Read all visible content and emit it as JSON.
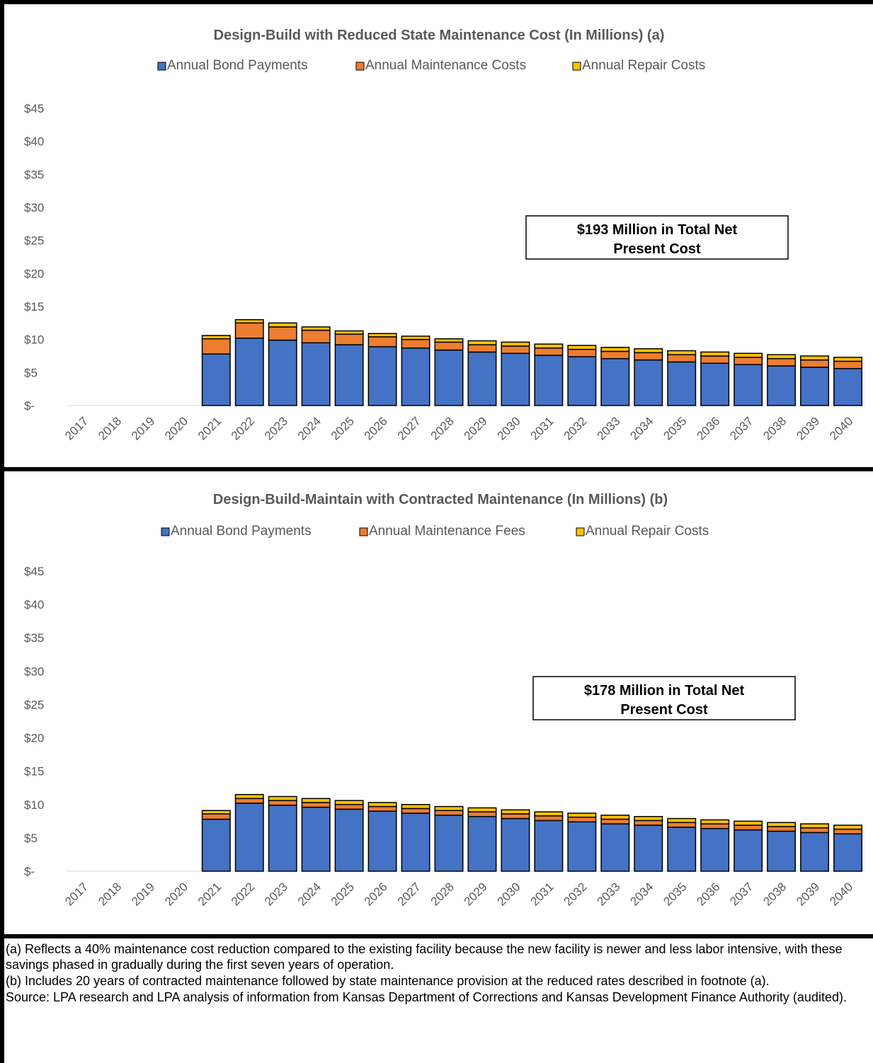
{
  "chart_data": [
    {
      "type": "bar",
      "stacked": true,
      "title": "Design-Build with Reduced State Maintenance Cost (In Millions) (a)",
      "categories": [
        "2017",
        "2018",
        "2019",
        "2020",
        "2021",
        "2022",
        "2023",
        "2024",
        "2025",
        "2026",
        "2027",
        "2028",
        "2029",
        "2030",
        "2031",
        "2032",
        "2033",
        "2034",
        "2035",
        "2036",
        "2037",
        "2038",
        "2039",
        "2040"
      ],
      "series": [
        {
          "name": "Annual Bond Payments",
          "color": "#4472C4",
          "values": [
            0,
            0,
            0,
            0,
            7.8,
            10.2,
            9.9,
            9.5,
            9.2,
            8.9,
            8.7,
            8.4,
            8.1,
            7.9,
            7.6,
            7.4,
            7.1,
            6.9,
            6.6,
            6.4,
            6.2,
            6.0,
            5.8,
            5.6
          ]
        },
        {
          "name": "Annual Maintenance Costs",
          "color": "#ED7D31",
          "values": [
            0,
            0,
            0,
            0,
            2.3,
            2.3,
            2.0,
            1.9,
            1.6,
            1.5,
            1.3,
            1.2,
            1.1,
            1.1,
            1.1,
            1.1,
            1.1,
            1.1,
            1.1,
            1.1,
            1.1,
            1.1,
            1.1,
            1.1
          ]
        },
        {
          "name": "Annual Repair Costs",
          "color": "#FFC000",
          "values": [
            0,
            0,
            0,
            0,
            0.5,
            0.5,
            0.6,
            0.5,
            0.5,
            0.5,
            0.5,
            0.5,
            0.6,
            0.6,
            0.6,
            0.6,
            0.6,
            0.6,
            0.6,
            0.6,
            0.6,
            0.6,
            0.6,
            0.6
          ]
        }
      ],
      "yticks": [
        "$45",
        "$40",
        "$35",
        "$30",
        "$25",
        "$20",
        "$15",
        "$10",
        "$5",
        "$-"
      ],
      "ylim": [
        0,
        45
      ],
      "annotation": [
        "$193 Million in Total Net",
        "Present Cost"
      ],
      "legend_position": "top"
    },
    {
      "type": "bar",
      "stacked": true,
      "title": "Design-Build-Maintain with Contracted Maintenance (In Millions) (b)",
      "categories": [
        "2017",
        "2018",
        "2019",
        "2020",
        "2021",
        "2022",
        "2023",
        "2024",
        "2025",
        "2026",
        "2027",
        "2028",
        "2029",
        "2030",
        "2031",
        "2032",
        "2033",
        "2034",
        "2035",
        "2036",
        "2037",
        "2038",
        "2039",
        "2040"
      ],
      "series": [
        {
          "name": "Annual Bond Payments",
          "color": "#4472C4",
          "values": [
            0,
            0,
            0,
            0,
            7.8,
            10.2,
            9.9,
            9.6,
            9.3,
            9.0,
            8.7,
            8.4,
            8.2,
            7.9,
            7.6,
            7.4,
            7.1,
            6.9,
            6.6,
            6.4,
            6.2,
            6.0,
            5.8,
            5.6
          ]
        },
        {
          "name": "Annual Maintenance Fees",
          "color": "#ED7D31",
          "values": [
            0,
            0,
            0,
            0,
            0.8,
            0.7,
            0.7,
            0.7,
            0.7,
            0.7,
            0.7,
            0.7,
            0.7,
            0.7,
            0.7,
            0.7,
            0.7,
            0.7,
            0.7,
            0.7,
            0.7,
            0.7,
            0.7,
            0.7
          ]
        },
        {
          "name": "Annual Repair Costs",
          "color": "#FFC000",
          "values": [
            0,
            0,
            0,
            0,
            0.5,
            0.6,
            0.6,
            0.6,
            0.6,
            0.6,
            0.6,
            0.6,
            0.6,
            0.6,
            0.6,
            0.6,
            0.6,
            0.6,
            0.6,
            0.6,
            0.6,
            0.6,
            0.6,
            0.6
          ]
        }
      ],
      "yticks": [
        "$45",
        "$40",
        "$35",
        "$30",
        "$25",
        "$20",
        "$15",
        "$10",
        "$5",
        "$-"
      ],
      "ylim": [
        0,
        45
      ],
      "annotation": [
        "$178 Million in Total Net",
        "Present Cost"
      ],
      "legend_position": "top"
    }
  ],
  "footnotes": {
    "a": "(a) Reflects a 40% maintenance cost reduction compared to the existing facility because the new facility is newer and less labor intensive, with these savings phased in gradually during the first seven years of operation.",
    "b": "(b) Includes 20 years of contracted maintenance followed by state maintenance provision at the reduced rates described in footnote (a).",
    "source": "Source: LPA research and LPA analysis of information from Kansas Department of Corrections and Kansas Development Finance Authority (audited)."
  }
}
